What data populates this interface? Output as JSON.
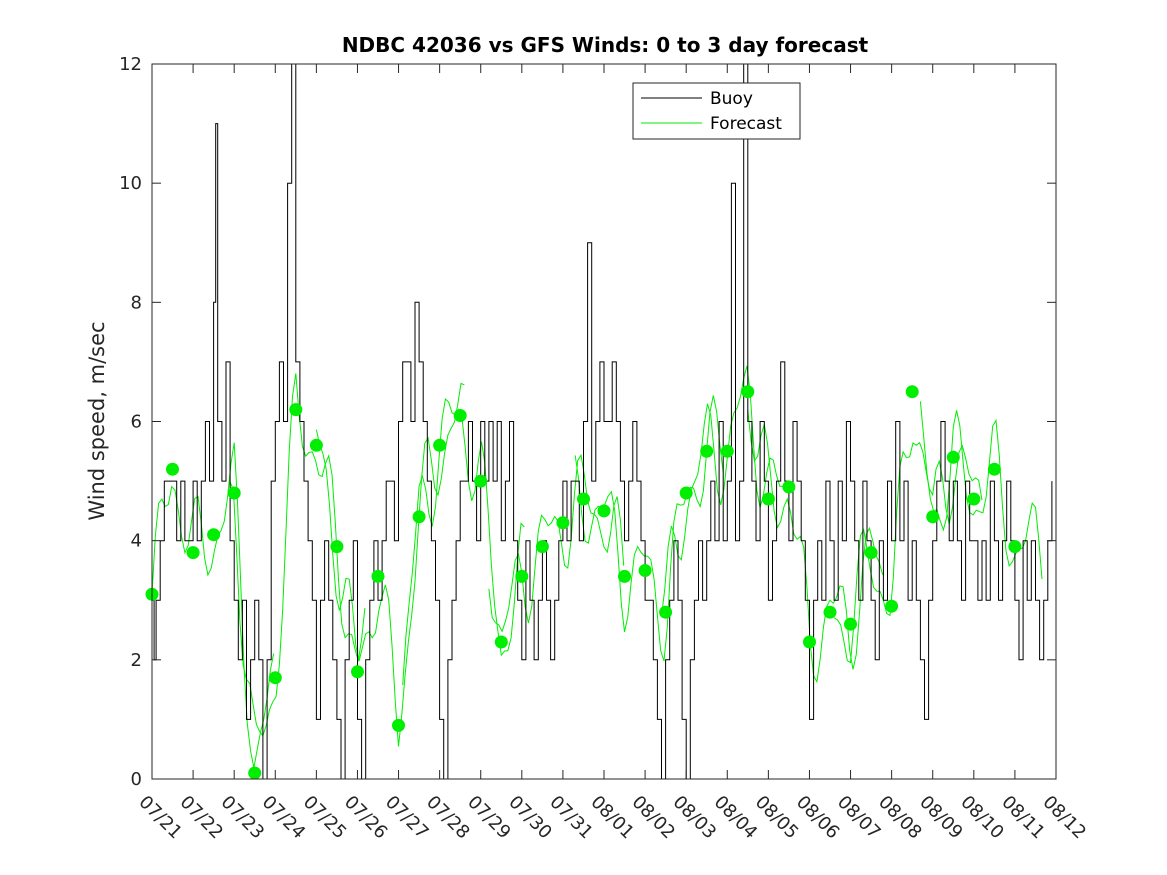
{
  "chart_data": {
    "type": "line",
    "title": "NDBC 42036 vs GFS Winds: 0 to 3 day forecast",
    "xlabel": "",
    "ylabel": "Wind speed, m/sec",
    "ylim": [
      0,
      12
    ],
    "yticks": [
      0,
      2,
      4,
      6,
      8,
      10,
      12
    ],
    "xlim": [
      "07/21",
      "08/12"
    ],
    "xticks": [
      "07/21",
      "07/22",
      "07/23",
      "07/24",
      "07/25",
      "07/26",
      "07/27",
      "07/28",
      "07/29",
      "07/30",
      "07/31",
      "08/01",
      "08/02",
      "08/03",
      "08/04",
      "08/05",
      "08/06",
      "08/07",
      "08/08",
      "08/09",
      "08/10",
      "08/11",
      "08/12"
    ],
    "grid": false,
    "legend": {
      "placement": "top-center",
      "entries": [
        "Buoy",
        "Forecast"
      ]
    },
    "colors": {
      "buoy": "#000000",
      "forecast": "#00ee00",
      "markers": "#00ee00"
    },
    "series": [
      {
        "name": "Buoy",
        "x": [
          0,
          0.05,
          0.1,
          0.2,
          0.3,
          0.4,
          0.5,
          0.6,
          0.7,
          0.8,
          0.9,
          1.0,
          1.1,
          1.2,
          1.3,
          1.4,
          1.5,
          1.55,
          1.6,
          1.7,
          1.8,
          1.9,
          2.0,
          2.1,
          2.2,
          2.3,
          2.4,
          2.5,
          2.6,
          2.7,
          2.8,
          2.9,
          3.0,
          3.1,
          3.2,
          3.3,
          3.4,
          3.5,
          3.6,
          3.7,
          3.8,
          3.9,
          4.0,
          4.1,
          4.2,
          4.3,
          4.4,
          4.5,
          4.6,
          4.7,
          4.8,
          4.9,
          5.0,
          5.1,
          5.2,
          5.3,
          5.4,
          5.5,
          5.6,
          5.7,
          5.8,
          5.9,
          6.0,
          6.1,
          6.2,
          6.3,
          6.4,
          6.5,
          6.6,
          6.7,
          6.8,
          6.9,
          7.0,
          7.1,
          7.2,
          7.3,
          7.4,
          7.5,
          7.6,
          7.7,
          7.8,
          7.9,
          8.0,
          8.1,
          8.2,
          8.3,
          8.4,
          8.5,
          8.6,
          8.7,
          8.8,
          8.9,
          9.0,
          9.1,
          9.2,
          9.3,
          9.4,
          9.5,
          9.6,
          9.7,
          9.8,
          9.9,
          10.0,
          10.1,
          10.2,
          10.3,
          10.4,
          10.5,
          10.6,
          10.7,
          10.8,
          10.9,
          11.0,
          11.1,
          11.2,
          11.3,
          11.4,
          11.5,
          11.6,
          11.7,
          11.8,
          11.9,
          12.0,
          12.1,
          12.2,
          12.3,
          12.4,
          12.5,
          12.6,
          12.7,
          12.8,
          12.9,
          13.0,
          13.1,
          13.2,
          13.3,
          13.4,
          13.5,
          13.6,
          13.7,
          13.8,
          13.9,
          14.0,
          14.1,
          14.2,
          14.3,
          14.4,
          14.5,
          14.6,
          14.7,
          14.8,
          14.9,
          15.0,
          15.1,
          15.2,
          15.3,
          15.4,
          15.5,
          15.6,
          15.7,
          15.8,
          15.9,
          16.0,
          16.1,
          16.2,
          16.3,
          16.4,
          16.5,
          16.6,
          16.7,
          16.8,
          16.9,
          17.0,
          17.1,
          17.2,
          17.3,
          17.4,
          17.5,
          17.6,
          17.7,
          17.8,
          17.9,
          18.0,
          18.1,
          18.2,
          18.3,
          18.4,
          18.5,
          18.6,
          18.7,
          18.8,
          18.9,
          19.0,
          19.1,
          19.2,
          19.3,
          19.4,
          19.5,
          19.6,
          19.7,
          19.8,
          19.9,
          20.0,
          20.1,
          20.2,
          20.3,
          20.4,
          20.5,
          20.6,
          20.7,
          20.8,
          20.9,
          21.0,
          21.1,
          21.2,
          21.3,
          21.4,
          21.5,
          21.6,
          21.7,
          21.8,
          21.9
        ],
        "values": [
          3,
          2,
          3,
          4,
          5,
          5,
          5,
          4,
          5,
          4,
          4,
          5,
          4,
          5,
          6,
          5,
          8,
          11,
          6,
          5,
          7,
          4,
          3,
          2,
          3,
          1,
          2,
          3,
          2,
          0,
          2,
          5,
          6,
          7,
          6,
          10,
          12,
          7,
          6,
          5,
          4,
          3,
          1,
          3,
          4,
          3,
          2,
          1,
          0,
          2,
          3,
          4,
          1,
          0,
          2,
          3,
          4,
          3,
          4,
          5,
          5,
          4,
          6,
          7,
          7,
          6,
          8,
          7,
          6,
          5,
          4,
          3,
          1,
          0,
          2,
          3,
          4,
          5,
          5,
          6,
          5,
          4,
          6,
          5,
          6,
          5,
          6,
          4,
          5,
          6,
          4,
          3,
          2,
          4,
          3,
          2,
          3,
          4,
          3,
          2,
          3,
          4,
          5,
          4,
          5,
          5,
          4,
          6,
          9,
          5,
          6,
          7,
          6,
          6,
          7,
          6,
          5,
          4,
          5,
          6,
          5,
          4,
          3,
          3,
          2,
          1,
          0,
          2,
          3,
          4,
          3,
          1,
          0,
          2,
          3,
          4,
          3,
          4,
          5,
          4,
          6,
          4,
          5,
          10,
          4,
          5,
          12,
          6,
          5,
          4,
          6,
          5,
          3,
          4,
          5,
          7,
          5,
          4,
          6,
          5,
          4,
          3,
          1,
          3,
          4,
          3,
          5,
          4,
          3,
          5,
          4,
          6,
          5,
          4,
          3,
          5,
          4,
          3,
          2,
          4,
          3,
          5,
          4,
          6,
          4,
          5,
          3,
          4,
          3,
          2,
          1,
          3,
          4,
          5,
          6,
          5,
          4,
          5,
          4,
          3,
          5,
          4,
          4,
          3,
          4,
          3,
          5,
          4,
          3,
          4,
          5,
          4,
          3,
          2,
          4,
          3,
          4,
          3,
          2,
          3,
          4,
          5
        ]
      },
      {
        "name": "Forecast",
        "type": "scatter",
        "x": [
          0,
          0.5,
          1.0,
          1.5,
          2.0,
          2.5,
          3.0,
          3.5,
          4.0,
          4.5,
          5.0,
          5.5,
          6.0,
          6.5,
          7.0,
          7.5,
          8.0,
          8.5,
          9.0,
          9.5,
          10.0,
          10.5,
          11.0,
          11.5,
          12.0,
          12.5,
          13.0,
          13.5,
          14.0,
          14.5,
          15.0,
          15.5,
          16.0,
          16.5,
          17.0,
          17.5,
          18.0,
          18.5,
          19.0,
          19.5,
          20.0,
          20.5,
          21.0
        ],
        "values": [
          3.1,
          5.2,
          3.8,
          4.1,
          4.8,
          0.1,
          1.7,
          6.2,
          5.6,
          3.9,
          1.8,
          3.4,
          0.9,
          4.4,
          5.6,
          6.1,
          5.0,
          2.3,
          3.4,
          3.9,
          4.3,
          4.7,
          4.5,
          3.4,
          3.5,
          2.8,
          4.8,
          5.5,
          5.5,
          6.5,
          4.7,
          4.9,
          2.3,
          2.8,
          2.6,
          3.8,
          2.9,
          6.5,
          4.4,
          5.4,
          4.7,
          5.2,
          3.9
        ]
      }
    ]
  }
}
